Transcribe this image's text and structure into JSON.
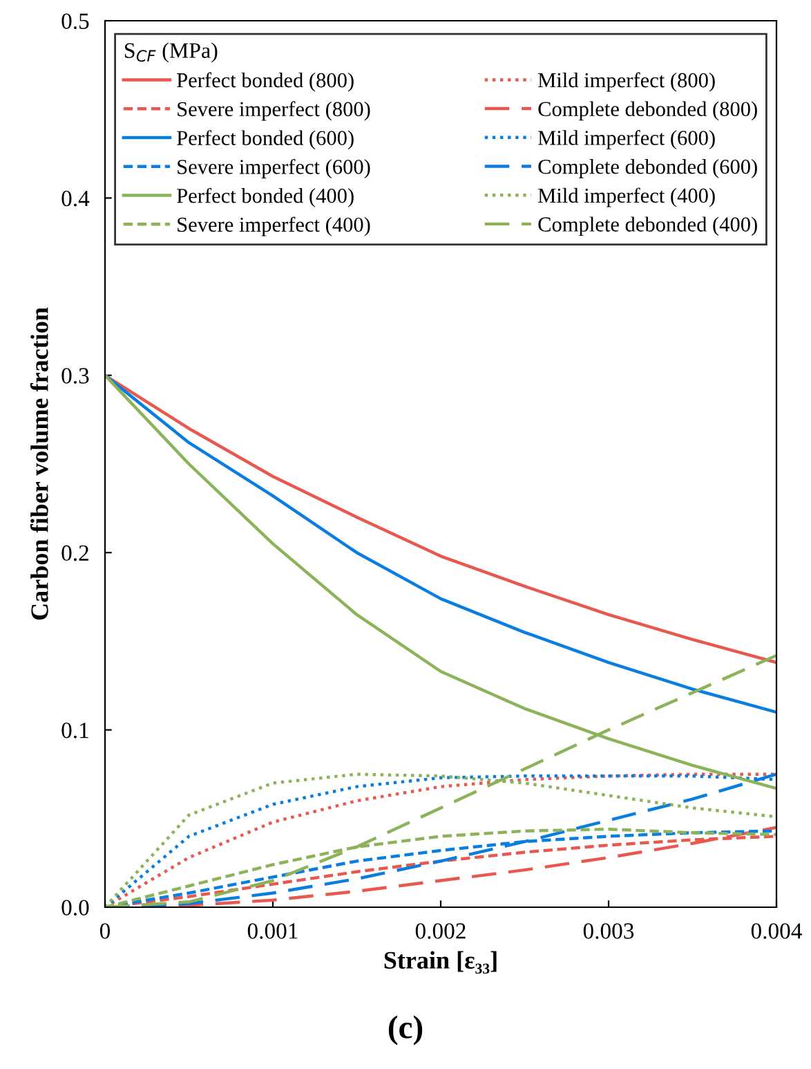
{
  "chart_data": {
    "type": "line",
    "xlabel": "Strain [ε₃₃]",
    "ylabel": "Carbon fiber volume fraction",
    "legend_title": "S$_{CF}$ (MPa)",
    "legend": "top",
    "grid": false,
    "x": [
      0,
      0.0005,
      0.001,
      0.0015,
      0.002,
      0.0025,
      0.003,
      0.0035,
      0.004
    ],
    "xlim": [
      0,
      0.004
    ],
    "xticks": [
      0,
      0.001,
      0.002,
      0.003,
      0.004
    ],
    "ylim": [
      0,
      0.5
    ],
    "yticks": [
      {
        "value": 0,
        "label": "0.0"
      },
      0.1,
      0.2,
      0.3,
      0.4,
      0.5
    ],
    "series": [
      {
        "name": "Perfect bonded (800)",
        "color": "#e8584f",
        "line_style": "solid",
        "values": [
          0.3,
          0.27,
          0.243,
          0.22,
          0.198,
          0.181,
          0.165,
          0.151,
          0.138
        ]
      },
      {
        "name": "Mild imperfect (800)",
        "color": "#e8584f",
        "line_style": "dotted",
        "values": [
          0,
          0.028,
          0.048,
          0.06,
          0.068,
          0.072,
          0.074,
          0.075,
          0.075
        ]
      },
      {
        "name": "Severe imperfect (800)",
        "color": "#e8584f",
        "line_style": "dashed",
        "values": [
          0,
          0.006,
          0.013,
          0.02,
          0.026,
          0.031,
          0.035,
          0.038,
          0.04
        ]
      },
      {
        "name": "Complete debonded (800)",
        "color": "#e8584f",
        "line_style": "long dashed",
        "values": [
          0,
          0.001,
          0.004,
          0.009,
          0.015,
          0.021,
          0.028,
          0.036,
          0.045
        ]
      },
      {
        "name": "Perfect bonded (600)",
        "color": "#0a7de0",
        "line_style": "solid",
        "values": [
          0.3,
          0.262,
          0.232,
          0.2,
          0.174,
          0.155,
          0.138,
          0.123,
          0.11
        ]
      },
      {
        "name": "Mild imperfect (600)",
        "color": "#0a7de0",
        "line_style": "dotted",
        "values": [
          0,
          0.04,
          0.058,
          0.068,
          0.073,
          0.074,
          0.074,
          0.074,
          0.072
        ]
      },
      {
        "name": "Severe imperfect (600)",
        "color": "#0a7de0",
        "line_style": "dashed",
        "values": [
          0,
          0.008,
          0.017,
          0.026,
          0.032,
          0.037,
          0.04,
          0.042,
          0.043
        ]
      },
      {
        "name": "Complete debonded (600)",
        "color": "#0a7de0",
        "line_style": "long dashed",
        "values": [
          0,
          0.002,
          0.008,
          0.016,
          0.026,
          0.037,
          0.049,
          0.061,
          0.075
        ]
      },
      {
        "name": "Perfect bonded (400)",
        "color": "#8db35a",
        "line_style": "solid",
        "values": [
          0.3,
          0.25,
          0.205,
          0.165,
          0.133,
          0.112,
          0.095,
          0.08,
          0.067
        ]
      },
      {
        "name": "Mild imperfect (400)",
        "color": "#8db35a",
        "line_style": "dotted",
        "values": [
          0,
          0.052,
          0.07,
          0.075,
          0.074,
          0.07,
          0.063,
          0.056,
          0.051
        ]
      },
      {
        "name": "Severe imperfect (400)",
        "color": "#8db35a",
        "line_style": "dashed",
        "values": [
          0,
          0.012,
          0.024,
          0.034,
          0.04,
          0.043,
          0.044,
          0.042,
          0.041
        ]
      },
      {
        "name": "Complete debonded (400)",
        "color": "#8db35a",
        "line_style": "long dashed",
        "values": [
          0,
          0.003,
          0.015,
          0.034,
          0.056,
          0.078,
          0.1,
          0.121,
          0.142
        ]
      }
    ],
    "annotations": [
      "(c)"
    ]
  }
}
